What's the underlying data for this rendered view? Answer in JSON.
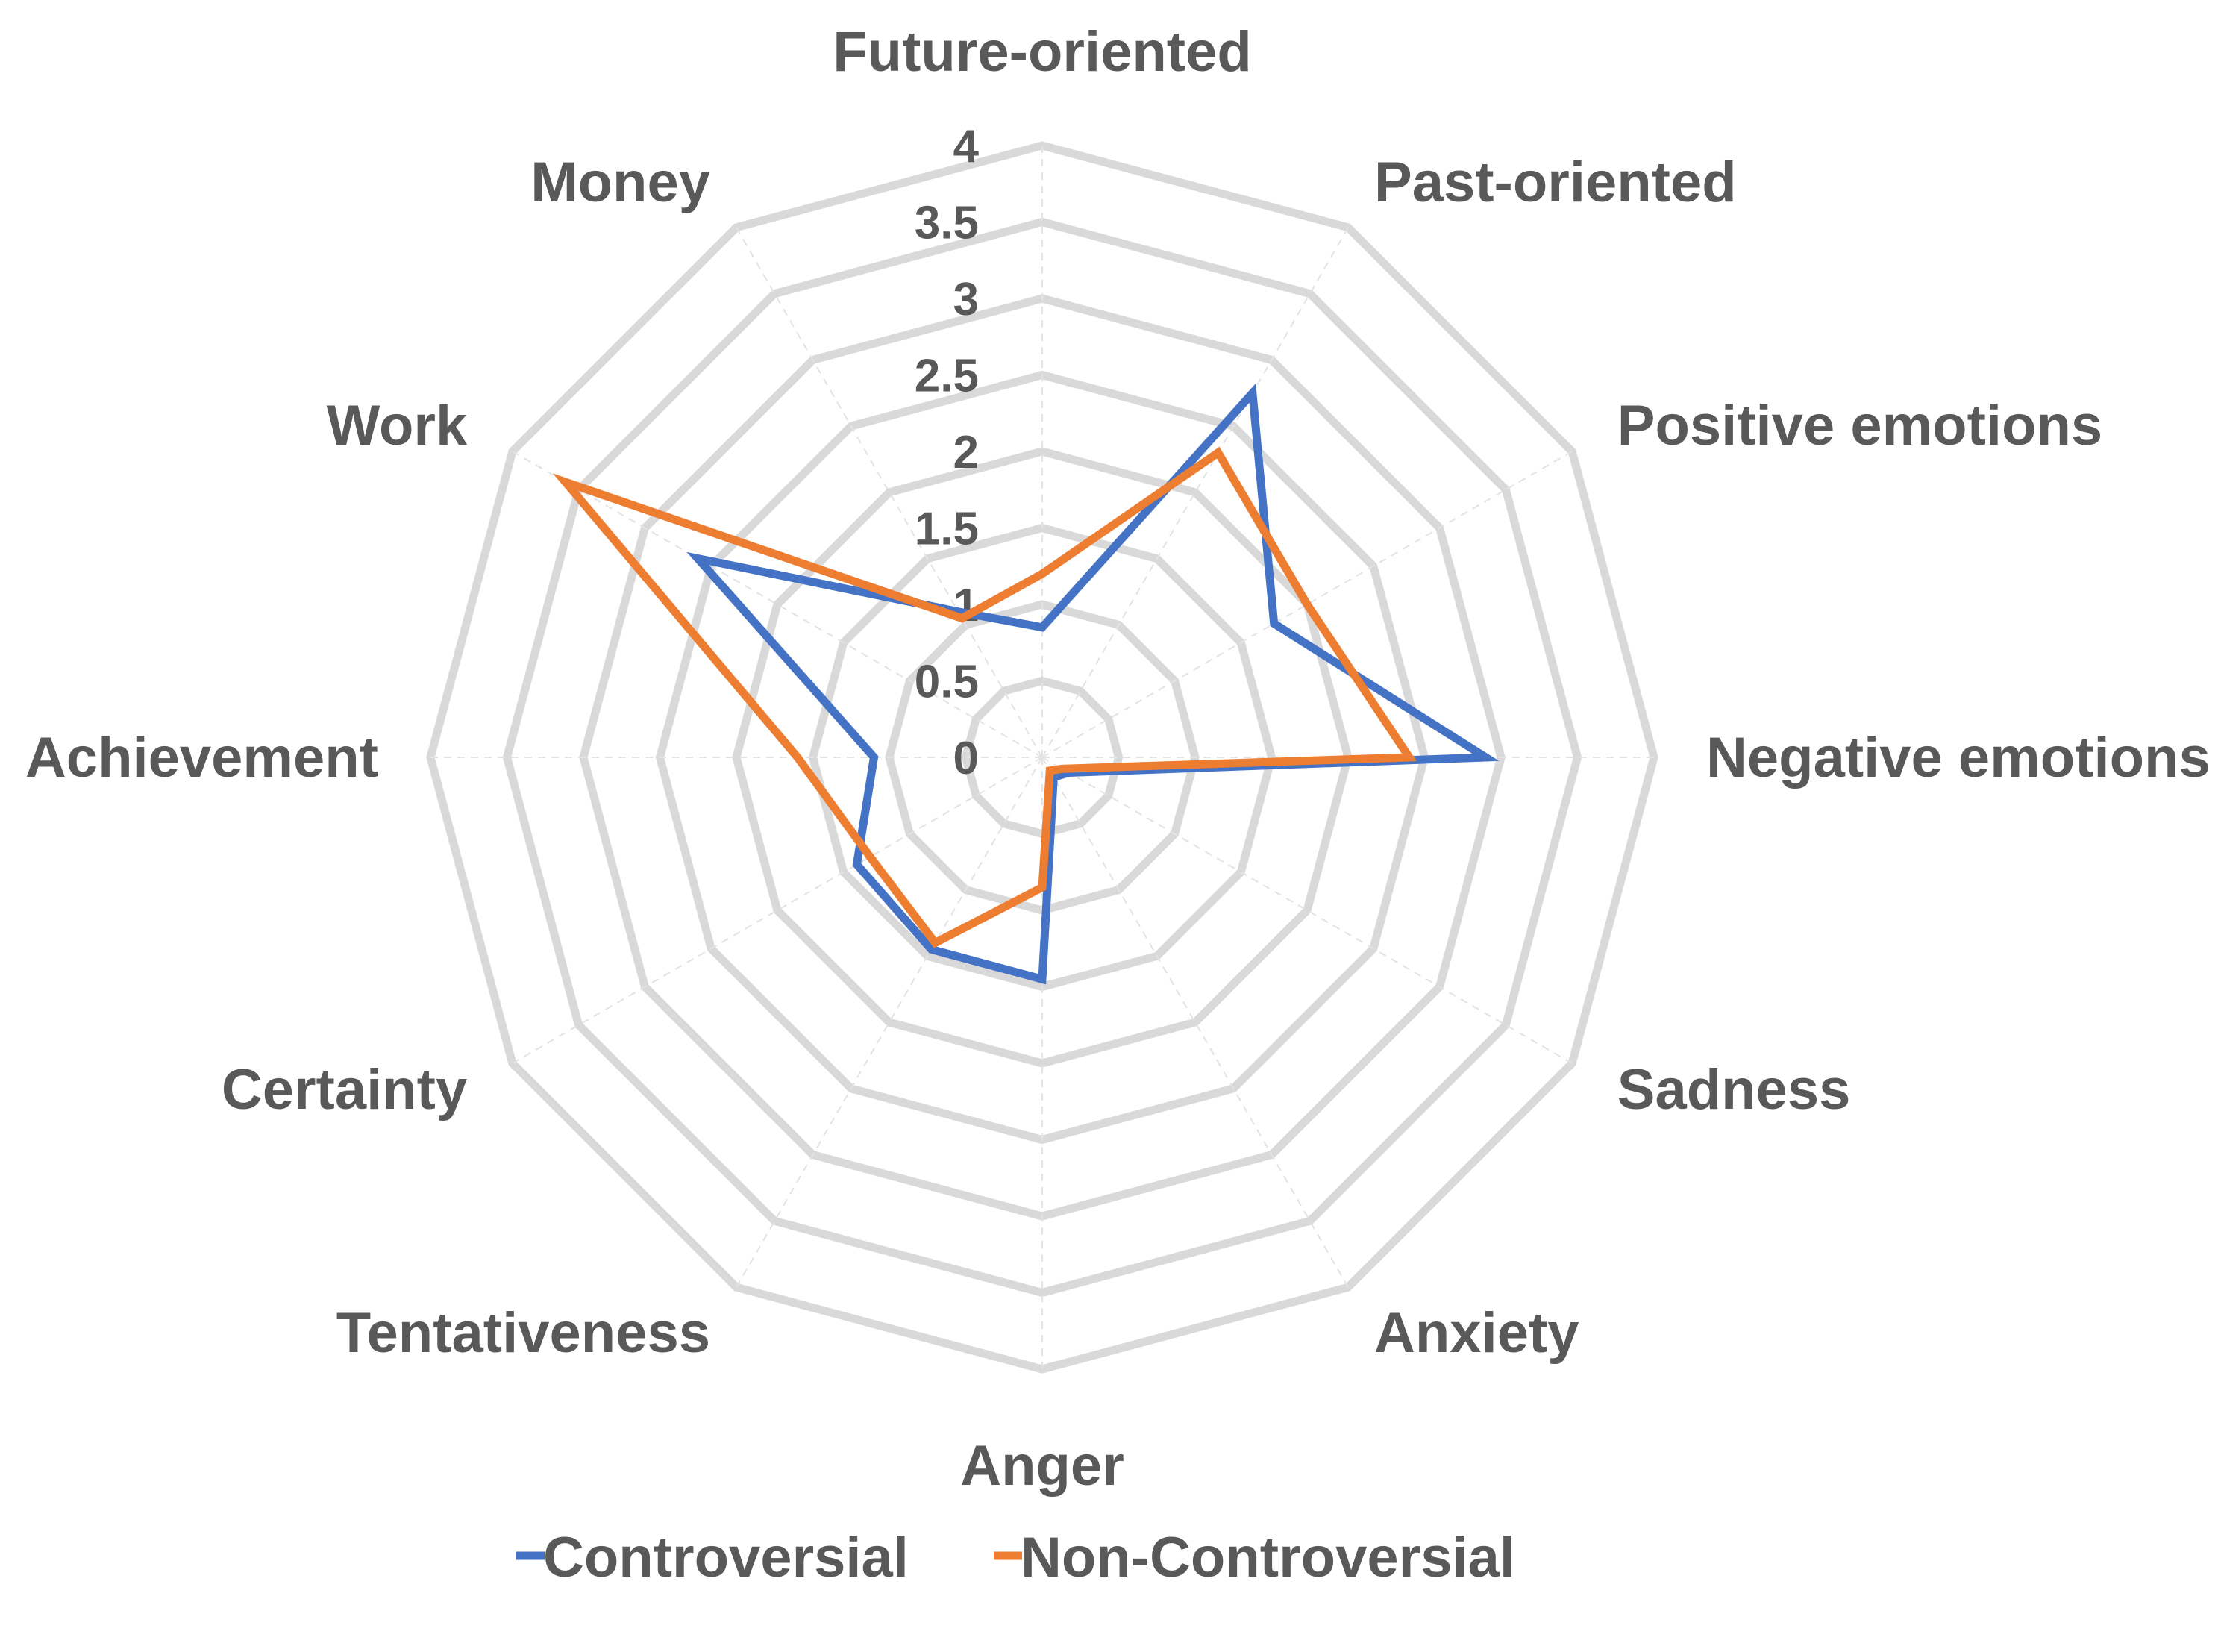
{
  "chart_data": {
    "type": "radar",
    "categories": [
      "Future-oriented",
      "Past-oriented",
      "Positive emotions",
      "Negative emotions",
      "Sadness",
      "Anxiety",
      "Anger",
      "Tentativeness",
      "Certainty",
      "Achievement",
      "Work",
      "Money"
    ],
    "series": [
      {
        "name": "Controversial",
        "color": "#4472C4",
        "values": [
          0.85,
          2.75,
          1.75,
          2.9,
          0.2,
          0.15,
          1.45,
          1.45,
          1.4,
          1.1,
          2.6,
          1.1
        ]
      },
      {
        "name": "Non-Controversial",
        "color": "#ED7D31",
        "values": [
          1.2,
          2.3,
          2.0,
          2.4,
          0.15,
          0.1,
          0.85,
          1.4,
          1.3,
          1.6,
          3.6,
          1.05
        ]
      }
    ],
    "r_ticks": [
      "0",
      "0.5",
      "1",
      "1.5",
      "2",
      "2.5",
      "3",
      "3.5",
      "4"
    ],
    "rlim": [
      0,
      4
    ],
    "grid": true,
    "gridline_color": "#D9D9D9",
    "text_color": "#595959",
    "legend_position": "bottom"
  }
}
